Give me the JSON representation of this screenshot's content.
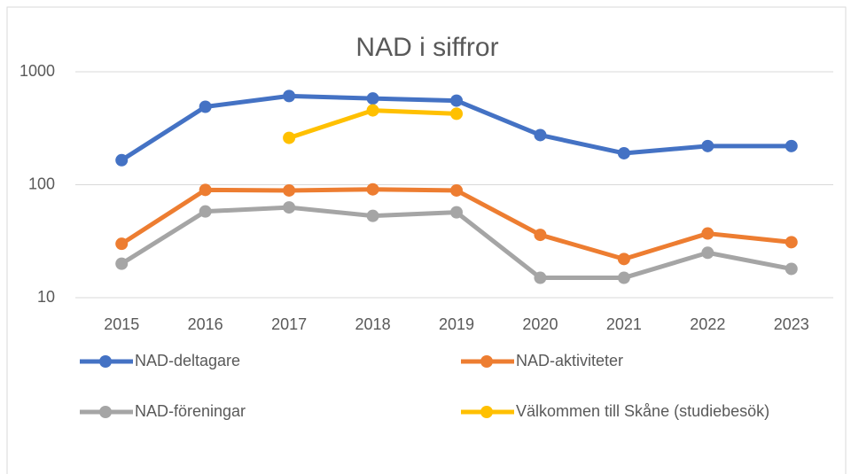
{
  "chart_data": {
    "type": "line",
    "title": "NAD i siffror",
    "categories": [
      "2015",
      "2016",
      "2017",
      "2018",
      "2019",
      "2020",
      "2021",
      "2022",
      "2023"
    ],
    "series": [
      {
        "name": "NAD-deltagare",
        "color": "#4472c4",
        "values": [
          165,
          490,
          610,
          580,
          555,
          275,
          190,
          220,
          220
        ]
      },
      {
        "name": "NAD-aktiviteter",
        "color": "#ed7d31",
        "values": [
          30,
          90,
          89,
          91,
          89,
          36,
          22,
          37,
          31
        ]
      },
      {
        "name": "NAD-föreningar",
        "color": "#a5a5a5",
        "values": [
          20,
          58,
          63,
          53,
          57,
          15,
          15,
          25,
          18
        ]
      },
      {
        "name": "Välkommen till Skåne (studiebesök)",
        "color": "#ffc000",
        "values": [
          null,
          null,
          260,
          455,
          425,
          null,
          null,
          null,
          null
        ]
      }
    ],
    "ylim": [
      10,
      1000
    ],
    "yticks": [
      10,
      100,
      1000
    ],
    "log_scale": true,
    "grid": true,
    "legend": "bottom"
  }
}
